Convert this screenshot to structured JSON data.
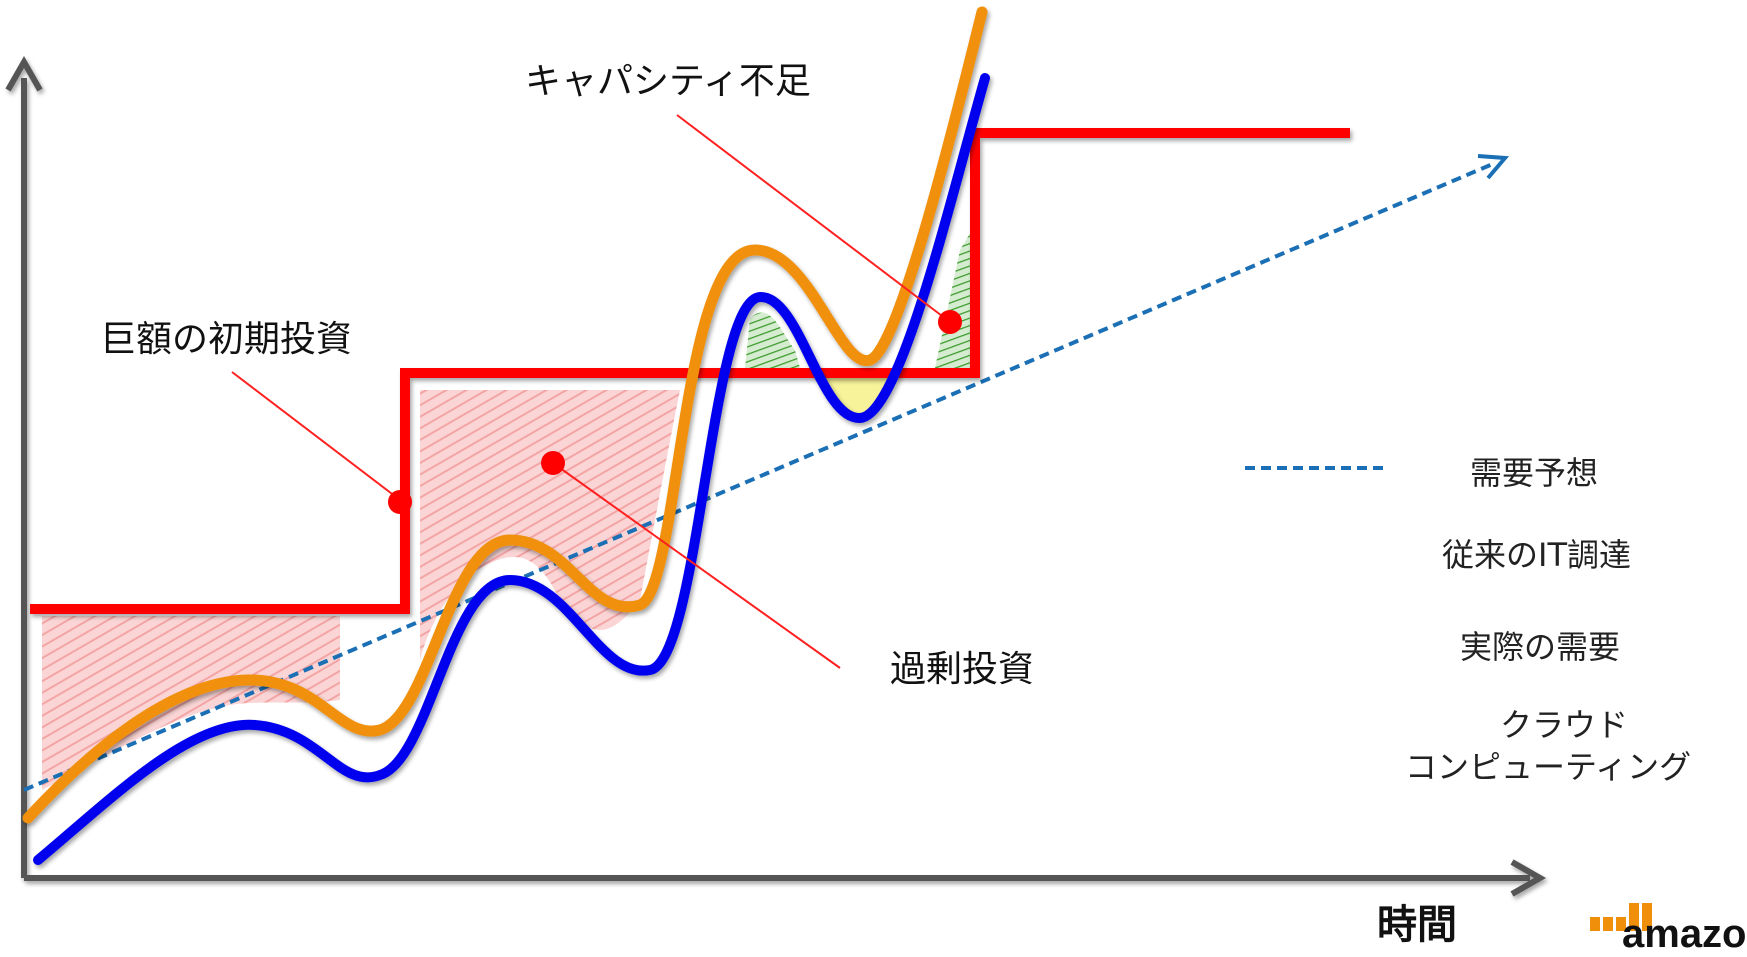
{
  "chart_data": {
    "type": "line",
    "xlabel": "時間",
    "ylabel": "",
    "series": [
      {
        "name": "需要予想",
        "color": "#1a6fb5",
        "style": "dashed"
      },
      {
        "name": "従来のIT調達",
        "color": "#ff0000",
        "style": "step"
      },
      {
        "name": "実際の需要",
        "color": "#0000ee",
        "style": "solid"
      },
      {
        "name": "クラウド\nコンピューティング",
        "color": "#f0900a",
        "style": "solid"
      }
    ],
    "annotations": [
      "巨額の初期投資",
      "過剰投資",
      "キャパシティ不足"
    ]
  },
  "labels": {
    "initial_investment": "巨額の初期投資",
    "over_investment": "過剰投資",
    "capacity_shortage": "キャパシティ不足",
    "x_axis": "時間"
  },
  "legend": [
    {
      "label": "需要予想",
      "color": "#1a6fb5"
    },
    {
      "label": "従来のIT調達",
      "color": "#ff0000"
    },
    {
      "label": "実際の需要",
      "color": "#0000ee"
    },
    {
      "label_line1": "クラウド",
      "label_line2": "コンピューティング",
      "color": "#f0900a"
    }
  ],
  "logo": {
    "text": "amazo",
    "color": "#f0900a"
  }
}
